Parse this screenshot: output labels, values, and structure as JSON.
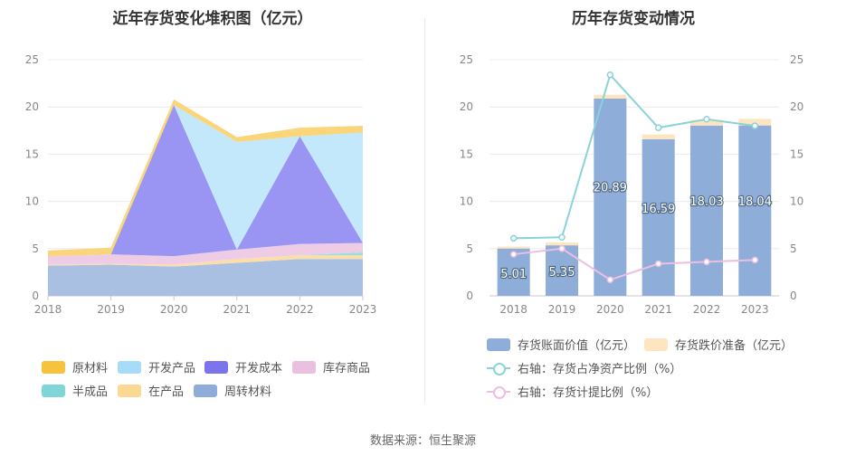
{
  "left": {
    "title": "近年存货变化堆积图（亿元）",
    "legend": [
      {
        "name": "原材料",
        "color": "#f8c23f"
      },
      {
        "name": "开发产品",
        "color": "#a6dcf7"
      },
      {
        "name": "开发成本",
        "color": "#7b74ec"
      },
      {
        "name": "库存商品",
        "color": "#ebbfe0"
      },
      {
        "name": "半成品",
        "color": "#80d6d6"
      },
      {
        "name": "在产品",
        "color": "#fbd992"
      },
      {
        "name": "周转材料",
        "color": "#8eadd8"
      }
    ]
  },
  "right": {
    "title": "历年存货变动情况",
    "legend": [
      {
        "name": "存货账面价值（亿元）",
        "color": "#8eadd8",
        "kind": "bar"
      },
      {
        "name": "存货跌价准备（亿元）",
        "color": "#fde5c0",
        "kind": "bar"
      },
      {
        "name": "右轴：存货占净资产比例（%）",
        "color": "#8ad3d6",
        "kind": "line"
      },
      {
        "name": "右轴：存货计提比例（%）",
        "color": "#ebbfe0",
        "kind": "line"
      }
    ]
  },
  "source": "数据来源：恒生聚源",
  "chart_data": [
    {
      "type": "area",
      "stacked": true,
      "title": "近年存货变化堆积图（亿元）",
      "x": [
        "2018",
        "2019",
        "2020",
        "2021",
        "2022",
        "2023"
      ],
      "ylim": [
        0,
        25
      ],
      "yticks": [
        0,
        5,
        10,
        15,
        20,
        25
      ],
      "grid": true,
      "legend_position": "bottom",
      "series": [
        {
          "name": "周转材料",
          "color": "#aac0e2",
          "values": [
            3.2,
            3.3,
            3.1,
            3.5,
            3.9,
            3.9
          ]
        },
        {
          "name": "在产品",
          "color": "#fcdfa8",
          "values": [
            0.1,
            0.1,
            0.2,
            0.4,
            0.4,
            0.4
          ]
        },
        {
          "name": "半成品",
          "color": "#99dede",
          "values": [
            0.0,
            0.0,
            0.0,
            0.0,
            0.0,
            0.3
          ]
        },
        {
          "name": "库存商品",
          "color": "#efcce6",
          "values": [
            0.9,
            1.0,
            0.9,
            1.0,
            1.2,
            1.0
          ]
        },
        {
          "name": "开发成本",
          "color": "#9a95f3",
          "values": [
            0.0,
            0.0,
            16.0,
            0.0,
            11.4,
            0.0
          ]
        },
        {
          "name": "开发产品",
          "color": "#c4e8fb",
          "values": [
            0.0,
            0.0,
            0.0,
            11.4,
            0.0,
            11.7
          ]
        },
        {
          "name": "原材料",
          "color": "#fad57a",
          "values": [
            0.6,
            0.7,
            0.6,
            0.5,
            0.9,
            0.7
          ]
        }
      ]
    },
    {
      "type": "bar",
      "stacked": true,
      "title": "历年存货变动情况",
      "categories": [
        "2018",
        "2019",
        "2020",
        "2021",
        "2022",
        "2023"
      ],
      "ylim": [
        0,
        25
      ],
      "yticks": [
        0,
        5,
        10,
        15,
        20,
        25
      ],
      "y2lim": [
        0,
        25
      ],
      "y2ticks": [
        0,
        5,
        10,
        15,
        20,
        25
      ],
      "grid": true,
      "legend_position": "bottom",
      "series": [
        {
          "name": "存货账面价值（亿元）",
          "type": "bar",
          "color": "#8eadd8",
          "values": [
            5.01,
            5.35,
            20.89,
            16.59,
            18.03,
            18.04
          ],
          "labels": [
            "5.01",
            "5.35",
            "20.89",
            "16.59",
            "18.03",
            "18.04"
          ]
        },
        {
          "name": "存货跌价准备（亿元）",
          "type": "bar",
          "color": "#fde5c0",
          "values": [
            0.2,
            0.3,
            0.4,
            0.5,
            0.6,
            0.7
          ]
        },
        {
          "name": "右轴：存货占净资产比例（%）",
          "type": "line",
          "axis": "right",
          "color": "#8ad3d6",
          "values": [
            6.1,
            6.2,
            23.4,
            17.8,
            18.7,
            18.0
          ]
        },
        {
          "name": "右轴：存货计提比例（%）",
          "type": "line",
          "axis": "right",
          "color": "#ebbfe0",
          "values": [
            4.4,
            5.0,
            1.7,
            3.4,
            3.6,
            3.8
          ]
        }
      ]
    }
  ]
}
